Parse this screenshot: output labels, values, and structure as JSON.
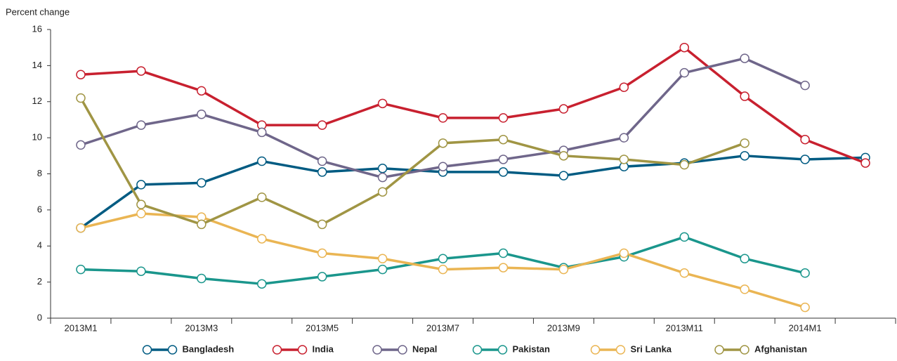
{
  "chart_data": {
    "type": "line",
    "y_label": "Percent change",
    "categories": [
      "2013M1",
      null,
      "2013M3",
      null,
      "2013M5",
      null,
      "2013M7",
      null,
      "2013M9",
      null,
      "2013M11",
      null,
      "2014M1",
      null
    ],
    "ylim": [
      0,
      16
    ],
    "yticks": [
      0,
      2,
      4,
      6,
      8,
      10,
      12,
      14,
      16
    ],
    "legend": "bottom",
    "series": [
      {
        "name": "Bangladesh",
        "color": "#005b82",
        "values": [
          5.0,
          7.4,
          7.5,
          8.7,
          8.1,
          8.3,
          8.1,
          8.1,
          7.9,
          8.4,
          8.6,
          9.0,
          8.8,
          8.9
        ]
      },
      {
        "name": "India",
        "color": "#c8202f",
        "values": [
          13.5,
          13.7,
          12.6,
          10.7,
          10.7,
          11.9,
          11.1,
          11.1,
          11.6,
          12.8,
          15.0,
          12.3,
          9.9,
          8.6
        ]
      },
      {
        "name": "Nepal",
        "color": "#6f668a",
        "values": [
          9.6,
          10.7,
          11.3,
          10.3,
          8.7,
          7.8,
          8.4,
          8.8,
          9.3,
          10.0,
          13.6,
          14.4,
          12.9,
          null
        ]
      },
      {
        "name": "Pakistan",
        "color": "#1a968c",
        "values": [
          2.7,
          2.6,
          2.2,
          1.9,
          2.3,
          2.7,
          3.3,
          3.6,
          2.8,
          3.4,
          4.5,
          3.3,
          2.5,
          null
        ]
      },
      {
        "name": "Sri Lanka",
        "color": "#eab553",
        "values": [
          5.0,
          5.8,
          5.6,
          4.4,
          3.6,
          3.3,
          2.7,
          2.8,
          2.7,
          3.6,
          2.5,
          1.6,
          0.6,
          null
        ]
      },
      {
        "name": "Afghanistan",
        "color": "#a09544",
        "values": [
          12.2,
          6.3,
          5.2,
          6.7,
          5.2,
          7.0,
          9.7,
          9.9,
          9.0,
          8.8,
          8.5,
          9.7,
          null,
          null
        ]
      }
    ]
  }
}
